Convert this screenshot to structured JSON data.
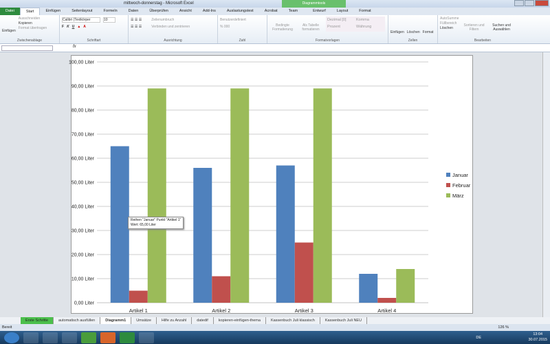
{
  "window": {
    "title": "mittwoch-donnerstag - Microsoft Excel",
    "context_tab": "Diagrammtools"
  },
  "tabs": [
    "Datei",
    "Start",
    "Einfügen",
    "Seitenlayout",
    "Formeln",
    "Daten",
    "Überprüfen",
    "Ansicht",
    "Add-Ins",
    "Auslastungstest",
    "Acrobat",
    "Team",
    "Entwurf",
    "Layout",
    "Format"
  ],
  "ribbon": {
    "clipboard": {
      "paste": "Einfügen",
      "cut": "Ausschneiden",
      "copy": "Kopieren",
      "format_painter": "Format übertragen",
      "label": "Zwischenablage"
    },
    "font": {
      "name": "Calibri (Textkörper",
      "size": "10",
      "bold": "F",
      "italic": "K",
      "underline": "U",
      "label": "Schriftart"
    },
    "alignment": {
      "wrap": "Zeilenumbruch",
      "merge": "Verbinden und zentrieren",
      "label": "Ausrichtung"
    },
    "number": {
      "format": "Benutzerdefiniert",
      "label": "Zahl"
    },
    "styles": {
      "conditional": "Bedingte Formatierung",
      "as_table": "Als Tabelle formatieren",
      "cell_styles": [
        "Dezimal [0]",
        "Komma",
        "Prozent",
        "Währung"
      ],
      "label": "Formatvorlagen"
    },
    "cells": {
      "insert": "Einfügen",
      "delete": "Löschen",
      "format": "Format",
      "label": "Zellen"
    },
    "editing": {
      "autosum": "AutoSumme",
      "fill": "Füllbereich",
      "clear": "Löschen",
      "sort": "Sortieren und Filtern",
      "find": "Suchen und Auswählen",
      "label": "Bearbeiten"
    }
  },
  "formula_bar": {
    "fx": "fx",
    "value": ""
  },
  "tooltip": {
    "line1": "Reihen \"Januar\" Punkt \"Artikel 1\"",
    "line2": "Wert: 65,00 Liter"
  },
  "sheet_tabs": [
    "Erste Schritte",
    "automatisch ausfüllen",
    "Diagramm1",
    "Umsätze",
    "Hilfe zu Anzahl",
    "datedif",
    "kopieren-einfügen-thema",
    "Kassenbuch Juli klassisch",
    "Kassenbuch Juli NEU"
  ],
  "active_sheet": "Diagramm1",
  "status": {
    "ready": "Bereit",
    "zoom": "126 %"
  },
  "taskbar": {
    "lang": "DE",
    "time": "13:04",
    "date": "30.07.2015"
  },
  "chart_data": {
    "type": "bar",
    "categories": [
      "Artikel 1",
      "Artikel 2",
      "Artikel 3",
      "Artikel 4"
    ],
    "series": [
      {
        "name": "Januar",
        "color": "#4f81bd",
        "values": [
          65,
          56,
          57,
          12
        ]
      },
      {
        "name": "Februar",
        "color": "#c0504d",
        "values": [
          5,
          11,
          25,
          2
        ]
      },
      {
        "name": "März",
        "color": "#9bbb59",
        "values": [
          89,
          89,
          89,
          14
        ]
      }
    ],
    "ylim": [
      0,
      100
    ],
    "yticks": [
      "0,00 Liter",
      "10,00 Liter",
      "20,00 Liter",
      "30,00 Liter",
      "40,00 Liter",
      "50,00 Liter",
      "60,00 Liter",
      "70,00 Liter",
      "80,00 Liter",
      "90,00 Liter",
      "100,00 Liter"
    ],
    "grid": true,
    "legend": "right"
  }
}
